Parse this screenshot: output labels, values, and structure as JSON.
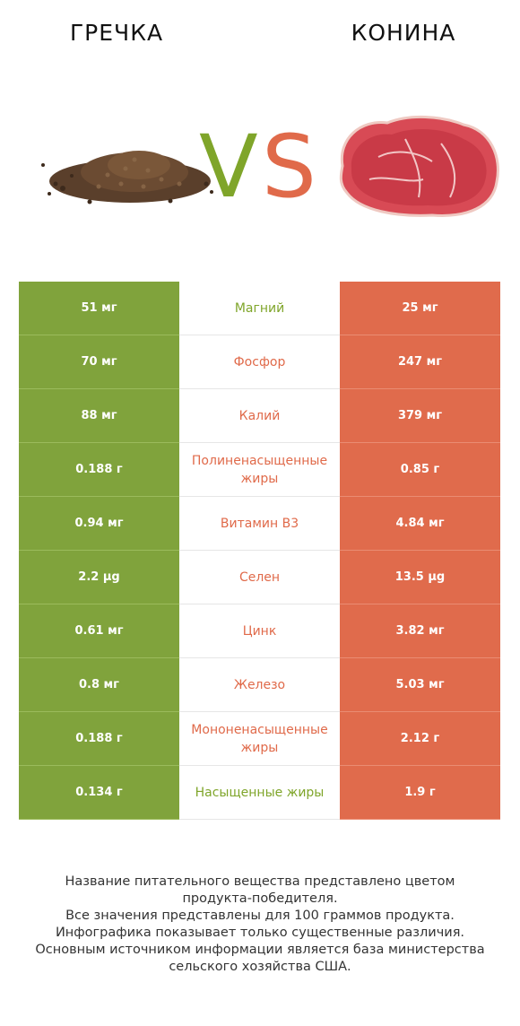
{
  "header": {
    "left_title": "ГРЕЧКА",
    "right_title": "КОНИНА",
    "vs_v": "V",
    "vs_s": "S"
  },
  "colors": {
    "left_accent": "#80a33c",
    "right_accent": "#e06b4c"
  },
  "rows": [
    {
      "left": "51 мг",
      "nutrient": "Магний",
      "right": "25 мг",
      "winner": "left"
    },
    {
      "left": "70 мг",
      "nutrient": "Фосфор",
      "right": "247 мг",
      "winner": "right"
    },
    {
      "left": "88 мг",
      "nutrient": "Калий",
      "right": "379 мг",
      "winner": "right"
    },
    {
      "left": "0.188 г",
      "nutrient": "Полиненасыщенные жиры",
      "right": "0.85 г",
      "winner": "right"
    },
    {
      "left": "0.94 мг",
      "nutrient": "Витамин B3",
      "right": "4.84 мг",
      "winner": "right"
    },
    {
      "left": "2.2 µg",
      "nutrient": "Селен",
      "right": "13.5 µg",
      "winner": "right"
    },
    {
      "left": "0.61 мг",
      "nutrient": "Цинк",
      "right": "3.82 мг",
      "winner": "right"
    },
    {
      "left": "0.8 мг",
      "nutrient": "Железо",
      "right": "5.03 мг",
      "winner": "right"
    },
    {
      "left": "0.188 г",
      "nutrient": "Мононенасыщенные жиры",
      "right": "2.12 г",
      "winner": "right"
    },
    {
      "left": "0.134 г",
      "nutrient": "Насыщенные жиры",
      "right": "1.9 г",
      "winner": "left"
    }
  ],
  "footer": {
    "line1": "Название питательного вещества представлено цветом",
    "line2": "продукта-победителя.",
    "line3": "Все значения представлены для 100 граммов продукта.",
    "line4": "Инфографика показывает только существенные различия.",
    "line5": "Основным источником информации является база министерства",
    "line6": "сельского хозяйства США."
  }
}
